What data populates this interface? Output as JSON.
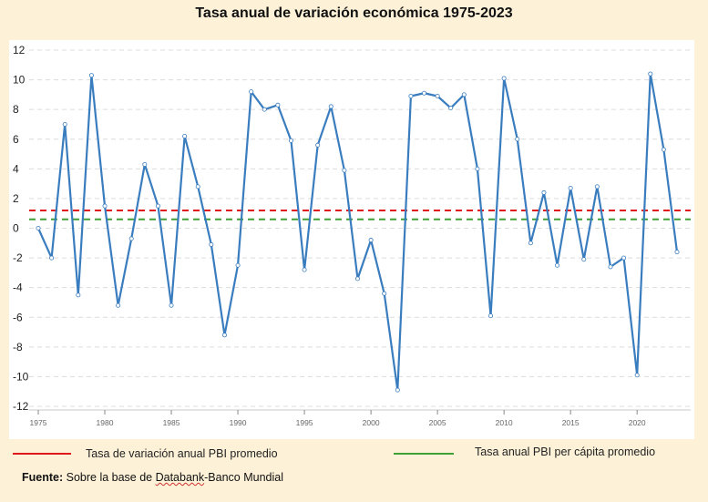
{
  "chart_data": {
    "type": "line",
    "title": "Tasa anual de variación económica 1975-2023",
    "xlabel": "",
    "ylabel": "",
    "xlim": [
      1975,
      2023
    ],
    "ylim": [
      -12,
      12
    ],
    "x_ticks": [
      1975,
      1980,
      1985,
      1990,
      1995,
      2000,
      2005,
      2010,
      2015,
      2020
    ],
    "y_ticks": [
      12,
      10,
      8,
      6,
      4,
      2,
      0,
      -2,
      -4,
      -6,
      -8,
      -10,
      -12
    ],
    "grid": true,
    "x": [
      1975,
      1976,
      1977,
      1978,
      1979,
      1980,
      1981,
      1982,
      1983,
      1984,
      1985,
      1986,
      1987,
      1988,
      1989,
      1990,
      1991,
      1992,
      1993,
      1994,
      1995,
      1996,
      1997,
      1998,
      1999,
      2000,
      2001,
      2002,
      2003,
      2004,
      2005,
      2006,
      2007,
      2008,
      2009,
      2010,
      2011,
      2012,
      2013,
      2014,
      2015,
      2016,
      2017,
      2018,
      2019,
      2020,
      2021,
      2022,
      2023
    ],
    "series": [
      {
        "name": "Tasa anual de variación",
        "color": "#3a7dbf",
        "values": [
          0.0,
          -2.0,
          7.0,
          -4.5,
          10.3,
          1.5,
          -5.2,
          -0.7,
          4.3,
          1.5,
          -5.2,
          6.2,
          2.8,
          -1.1,
          -7.2,
          -2.5,
          9.2,
          8.0,
          8.3,
          5.9,
          -2.8,
          5.6,
          8.2,
          3.9,
          -3.4,
          -0.8,
          -4.4,
          -10.9,
          8.9,
          9.1,
          8.9,
          8.1,
          9.0,
          4.0,
          -5.9,
          10.1,
          6.0,
          -1.0,
          2.4,
          -2.5,
          2.7,
          -2.1,
          2.8,
          -2.6,
          -2.0,
          -9.9,
          10.4,
          5.3,
          -1.6
        ]
      }
    ],
    "reference_lines": [
      {
        "name": "Tasa de variación anual PBI promedio",
        "value": 1.2,
        "color": "#e0161a"
      },
      {
        "name": "Tasa anual PBI per cápita promedio",
        "value": 0.6,
        "color": "#3fa035"
      }
    ],
    "legend": [
      {
        "label": "Tasa de variación anual PBI promedio",
        "color": "#e0161a"
      },
      {
        "label": "Tasa anual PBI per cápita promedio",
        "color": "#3fa035"
      }
    ],
    "source_label": "Fuente:",
    "source_text_prefix": " Sobre la base de ",
    "source_text_link": "Databank",
    "source_text_suffix": "-Banco Mundial"
  }
}
